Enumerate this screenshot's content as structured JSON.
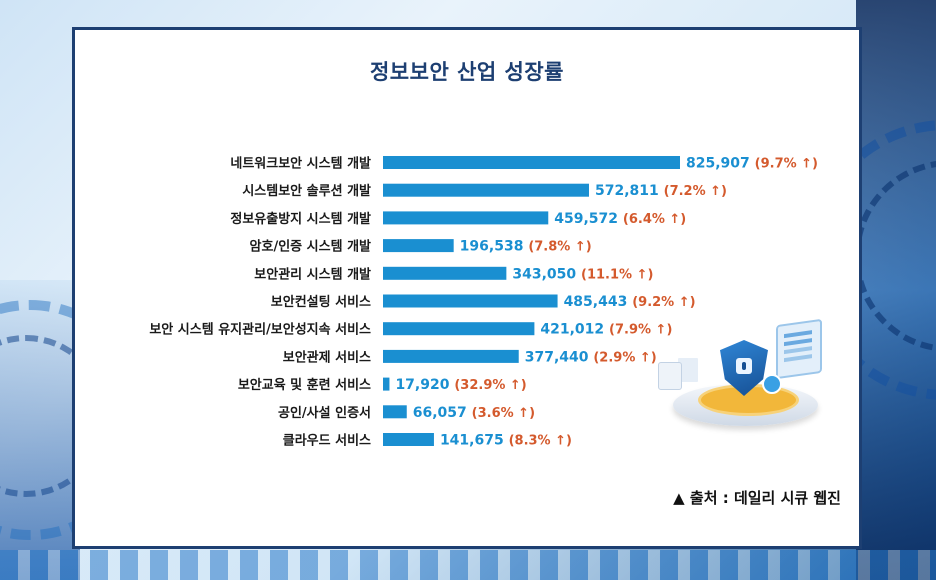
{
  "title": "정보보안 산업 성장률",
  "source": "▲ 출처 : 데일리 시큐 웹진",
  "colors": {
    "bar": "#1a8fd1",
    "value_text": "#1a8fd1",
    "percent_text": "#d45a2d",
    "title": "#1d3f72"
  },
  "chart_data": {
    "type": "bar",
    "orientation": "horizontal",
    "title": "정보보안 산업 성장률",
    "xlabel": "",
    "ylabel": "",
    "grid": false,
    "legend": "none",
    "categories": [
      "네트워크보안 시스템 개발",
      "시스템보안 솔루션 개발",
      "정보유출방지 시스템 개발",
      "암호/인증 시스템 개발",
      "보안관리 시스템 개발",
      "보안컨설팅 서비스",
      "보안 시스템 유지관리/보안성지속 서비스",
      "보안관제 서비스",
      "보안교육 및 훈련 서비스",
      "공인/사설 인증서",
      "클라우드 서비스"
    ],
    "values": [
      825907,
      572811,
      459572,
      196538,
      343050,
      485443,
      421012,
      377440,
      17920,
      66057,
      141675
    ],
    "value_labels": [
      "825,907",
      "572,811",
      "459,572",
      "196,538",
      "343,050",
      "485,443",
      "421,012",
      "377,440",
      "17,920",
      "66,057",
      "141,675"
    ],
    "growth_labels": [
      "(9.7% ↑)",
      "(7.2% ↑)",
      "(6.4% ↑)",
      "(7.8% ↑)",
      "(11.1% ↑)",
      "(9.2% ↑)",
      "(7.9% ↑)",
      "(2.9% ↑)",
      "(32.9% ↑)",
      "(3.6% ↑)",
      "(8.3% ↑)"
    ],
    "xlim": [
      0,
      825907
    ]
  }
}
